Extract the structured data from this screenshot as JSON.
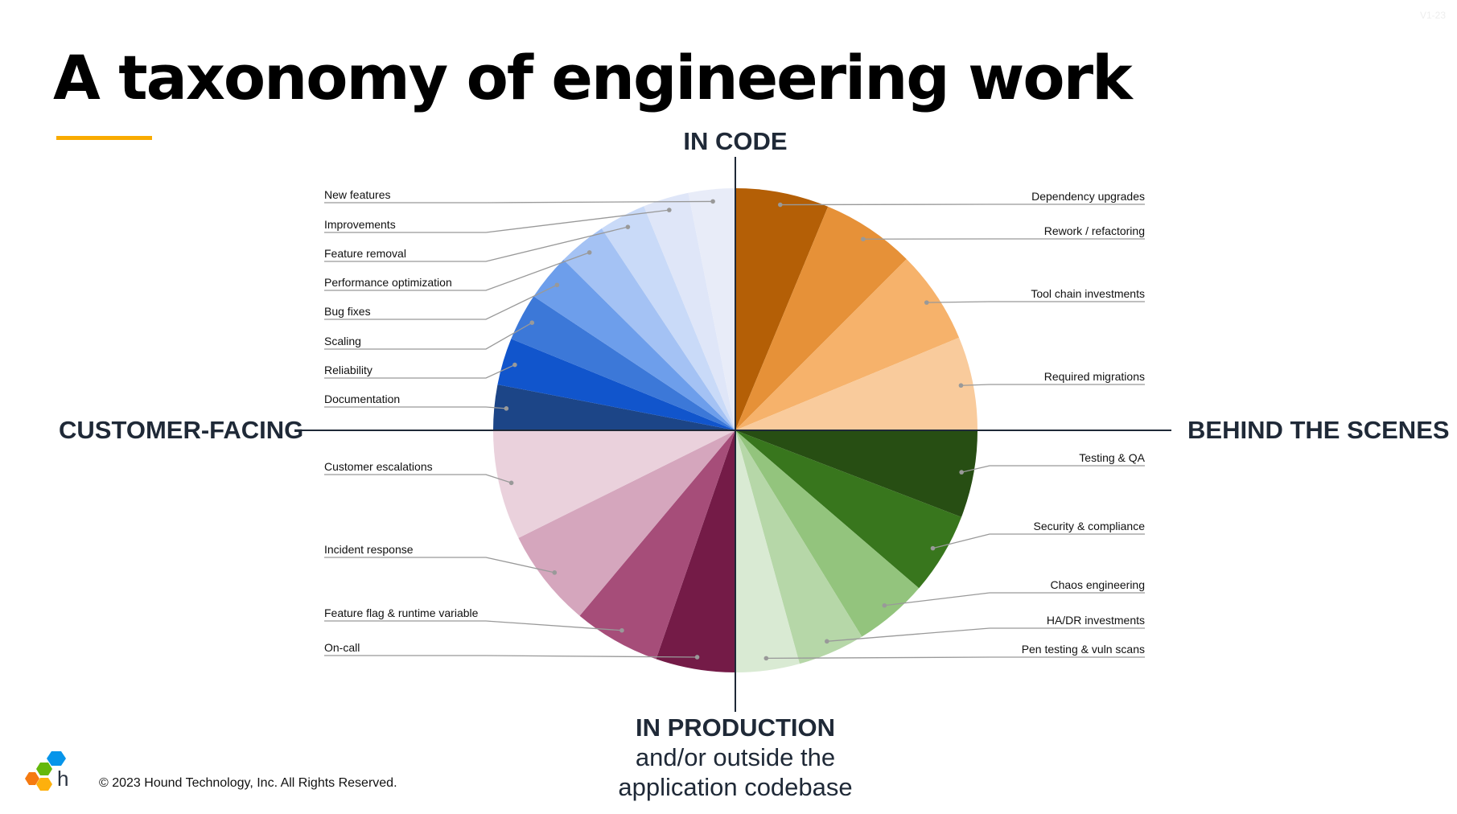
{
  "version": "V1-23",
  "title": "A taxonomy of engineering work",
  "axes": {
    "top": "IN CODE",
    "left": "CUSTOMER-FACING",
    "right": "BEHIND THE SCENES",
    "bottom_lines": [
      "IN PRODUCTION",
      "and/or outside the",
      "application codebase"
    ]
  },
  "footer": {
    "copyright": "© 2023 Hound Technology, Inc. All Rights Reserved.",
    "logo_letter": "h"
  },
  "chart_data": {
    "type": "pie",
    "start": "top, clockwise",
    "slices": [
      {
        "label": "Dependency upgrades",
        "value": 22.5,
        "color": "#b45f06"
      },
      {
        "label": "Rework / refactoring",
        "value": 22.5,
        "color": "#e69138"
      },
      {
        "label": "Tool chain investments",
        "value": 22.5,
        "color": "#f6b26b"
      },
      {
        "label": "Required migrations",
        "value": 22.5,
        "color": "#f9cb9c"
      },
      {
        "label": "Testing & QA",
        "value": 21,
        "color": "#274e13"
      },
      {
        "label": "Security & compliance",
        "value": 19.7,
        "color": "#38761d"
      },
      {
        "label": "Chaos engineering",
        "value": 17.8,
        "color": "#93c47d"
      },
      {
        "label": "HA/DR investments",
        "value": 16.1,
        "color": "#b6d7a8"
      },
      {
        "label": "Pen testing & vuln scans",
        "value": 15.4,
        "color": "#d9ead3"
      },
      {
        "label": "On-call",
        "value": 19.1,
        "color": "#741b47"
      },
      {
        "label": "Feature flag & runtime variable",
        "value": 20.9,
        "color": "#a64d79"
      },
      {
        "label": "Incident response",
        "value": 23.6,
        "color": "#d5a6bd"
      },
      {
        "label": "Customer escalations",
        "value": 26.4,
        "color": "#ead1dc"
      },
      {
        "label": "Documentation",
        "value": 10.9,
        "color": "#1c4587"
      },
      {
        "label": "Reliability",
        "value": 11.3,
        "color": "#1155cc"
      },
      {
        "label": "Scaling",
        "value": 11.4,
        "color": "#3c78d8"
      },
      {
        "label": "Bug fixes",
        "value": 11.2,
        "color": "#6d9eeb"
      },
      {
        "label": "Performance optimization",
        "value": 11.7,
        "color": "#a4c2f4"
      },
      {
        "label": "Feature removal",
        "value": 11.3,
        "color": "#c9daf8"
      },
      {
        "label": "Improvements",
        "value": 11.0,
        "color": "#dfe6f8"
      },
      {
        "label": "New features",
        "value": 11.2,
        "color": "#e8ecf8"
      }
    ]
  },
  "colors": {
    "accent": "#f9ab00",
    "axis": "#1f2937",
    "leader": "#999999"
  }
}
